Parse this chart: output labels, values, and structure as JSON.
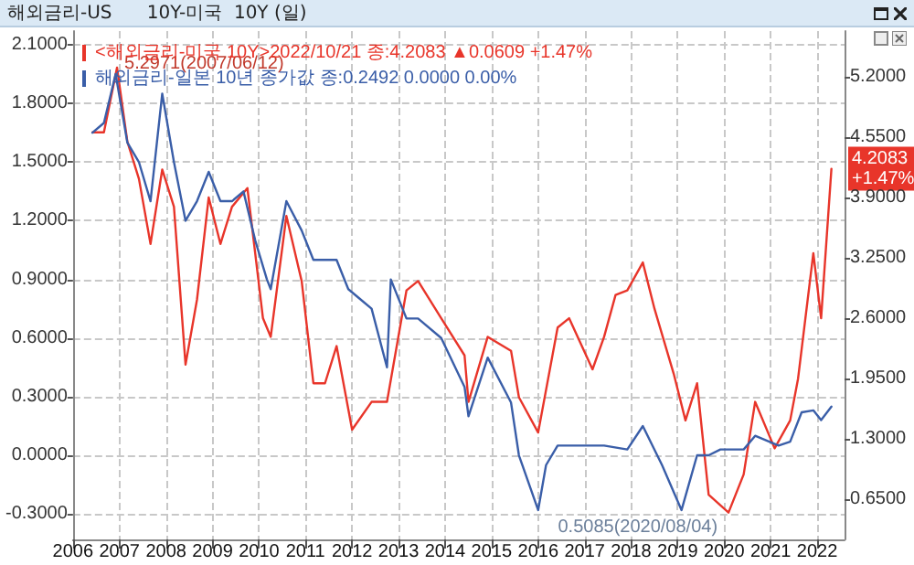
{
  "chart_data": {
    "type": "line",
    "title": "해외금리-US      10Y-미국  10Y (일)",
    "xlim": [
      "2006-07-01",
      "2023-02-01"
    ],
    "xticks": [
      {
        "value": "2006-07-01",
        "label": "2006"
      },
      {
        "value": "2007-07-01",
        "label": "2007"
      },
      {
        "value": "2008-07-01",
        "label": "2008"
      },
      {
        "value": "2009-07-01",
        "label": "2009"
      },
      {
        "value": "2010-07-01",
        "label": "2010"
      },
      {
        "value": "2011-07-01",
        "label": "2011"
      },
      {
        "value": "2012-07-01",
        "label": "2012"
      },
      {
        "value": "2013-07-01",
        "label": "2013"
      },
      {
        "value": "2014-07-01",
        "label": "2014"
      },
      {
        "value": "2015-07-01",
        "label": "2015"
      },
      {
        "value": "2016-07-01",
        "label": "2016"
      },
      {
        "value": "2017-07-01",
        "label": "2017"
      },
      {
        "value": "2018-07-01",
        "label": "2018"
      },
      {
        "value": "2019-07-01",
        "label": "2019"
      },
      {
        "value": "2020-07-01",
        "label": "2020"
      },
      {
        "value": "2021-07-01",
        "label": "2021"
      },
      {
        "value": "2022-07-01",
        "label": "2022"
      }
    ],
    "ylim": [
      -0.43,
      2.17
    ],
    "yticks": [
      {
        "value": -0.3,
        "label": "-0.3000"
      },
      {
        "value": 0,
        "label": "0.0000"
      },
      {
        "value": 0.3,
        "label": "0.3000"
      },
      {
        "value": 0.6,
        "label": "0.6000"
      },
      {
        "value": 0.9,
        "label": "0.9000"
      },
      {
        "value": 1.2,
        "label": "1.2000"
      },
      {
        "value": 1.5,
        "label": "1.5000"
      },
      {
        "value": 1.8,
        "label": "1.8000"
      },
      {
        "value": 2.1,
        "label": "2.1000"
      }
    ],
    "y2lim": [
      0.22,
      5.69
    ],
    "y2ticks": [
      {
        "value": 0.65,
        "label": "0.6500"
      },
      {
        "value": 1.3,
        "label": "1.3000"
      },
      {
        "value": 1.95,
        "label": "1.9500"
      },
      {
        "value": 2.6,
        "label": "2.6000"
      },
      {
        "value": 3.25,
        "label": "3.2500"
      },
      {
        "value": 3.9,
        "label": "3.9000"
      },
      {
        "value": 4.55,
        "label": "4.5500"
      },
      {
        "value": 5.2,
        "label": "5.2000"
      }
    ],
    "grid": true,
    "legend": "top left",
    "marker": "none",
    "line_style": "solid",
    "series": [
      {
        "name": "<해외금리-미국 10Y>2022/10/21 종:4.2083 ▲0.0609 +1.47%",
        "color": "#e8352a",
        "axis": "y2",
        "x": [
          "2006-12",
          "2007-03",
          "2007-06-12",
          "2007-09",
          "2007-12",
          "2008-03",
          "2008-06",
          "2008-09",
          "2008-12",
          "2009-03",
          "2009-06",
          "2009-09",
          "2009-12",
          "2010-04",
          "2010-08",
          "2010-10",
          "2011-02",
          "2011-06",
          "2011-09",
          "2011-12",
          "2012-03",
          "2012-07",
          "2012-12",
          "2013-04",
          "2013-09",
          "2013-12",
          "2014-06",
          "2014-12",
          "2015-01",
          "2015-06",
          "2015-12",
          "2016-02",
          "2016-07",
          "2016-12",
          "2017-03",
          "2017-09",
          "2017-12",
          "2018-03",
          "2018-06",
          "2018-10",
          "2019-01",
          "2019-06",
          "2019-09",
          "2019-12",
          "2020-03",
          "2020-08-04",
          "2020-12",
          "2021-03",
          "2021-08",
          "2021-12",
          "2022-02",
          "2022-06",
          "2022-08",
          "2022-10-21"
        ],
        "values": [
          4.6,
          4.6,
          5.2971,
          4.5,
          4.1,
          3.4,
          4.2,
          3.8,
          2.1,
          2.8,
          3.9,
          3.4,
          3.8,
          4.0,
          2.6,
          2.4,
          3.7,
          3.0,
          1.9,
          1.9,
          2.3,
          1.4,
          1.7,
          1.7,
          2.9,
          3.0,
          2.6,
          2.2,
          1.7,
          2.4,
          2.25,
          1.75,
          1.37,
          2.5,
          2.6,
          2.05,
          2.4,
          2.85,
          2.9,
          3.2,
          2.7,
          2.0,
          1.5,
          1.9,
          0.7,
          0.5085,
          0.92,
          1.7,
          1.2,
          1.5,
          1.95,
          3.3,
          2.6,
          4.2083
        ]
      },
      {
        "name": "해외금리-일본 10년 종가값 종:0.2492 0.0000 0.00%",
        "color": "#3a5ea8",
        "x": [
          "2006-12",
          "2007-03",
          "2007-06",
          "2007-09",
          "2007-12",
          "2008-03",
          "2008-06",
          "2008-09",
          "2008-12",
          "2009-03",
          "2009-06",
          "2009-09",
          "2009-12",
          "2010-03",
          "2010-06",
          "2010-09",
          "2010-10",
          "2011-02",
          "2011-06",
          "2011-09",
          "2011-12",
          "2012-03",
          "2012-06",
          "2012-09",
          "2012-12",
          "2013-04",
          "2013-05",
          "2013-09",
          "2013-12",
          "2014-06",
          "2014-12",
          "2015-01",
          "2015-06",
          "2015-12",
          "2016-02",
          "2016-07",
          "2016-09",
          "2016-12",
          "2017-06",
          "2017-12",
          "2018-06",
          "2018-10",
          "2019-03",
          "2019-08",
          "2019-12",
          "2020-03",
          "2020-06",
          "2020-12",
          "2021-03",
          "2021-09",
          "2021-12",
          "2022-03",
          "2022-06",
          "2022-08",
          "2022-10-21"
        ],
        "values": [
          1.65,
          1.7,
          1.95,
          1.6,
          1.5,
          1.3,
          1.85,
          1.5,
          1.2,
          1.3,
          1.45,
          1.3,
          1.3,
          1.35,
          1.1,
          0.9,
          0.85,
          1.3,
          1.15,
          1.0,
          1.0,
          1.0,
          0.85,
          0.8,
          0.75,
          0.45,
          0.9,
          0.7,
          0.7,
          0.6,
          0.35,
          0.2,
          0.5,
          0.27,
          0.0,
          -0.28,
          -0.05,
          0.05,
          0.05,
          0.05,
          0.03,
          0.15,
          -0.05,
          -0.28,
          0.0,
          0.0,
          0.03,
          0.03,
          0.1,
          0.05,
          0.07,
          0.22,
          0.23,
          0.18,
          0.2492
        ]
      }
    ],
    "annotations": [
      "5.2971(2007/06/12)",
      "0.5085(2020/08/04)",
      "4.2083 +1.47%"
    ]
  }
}
